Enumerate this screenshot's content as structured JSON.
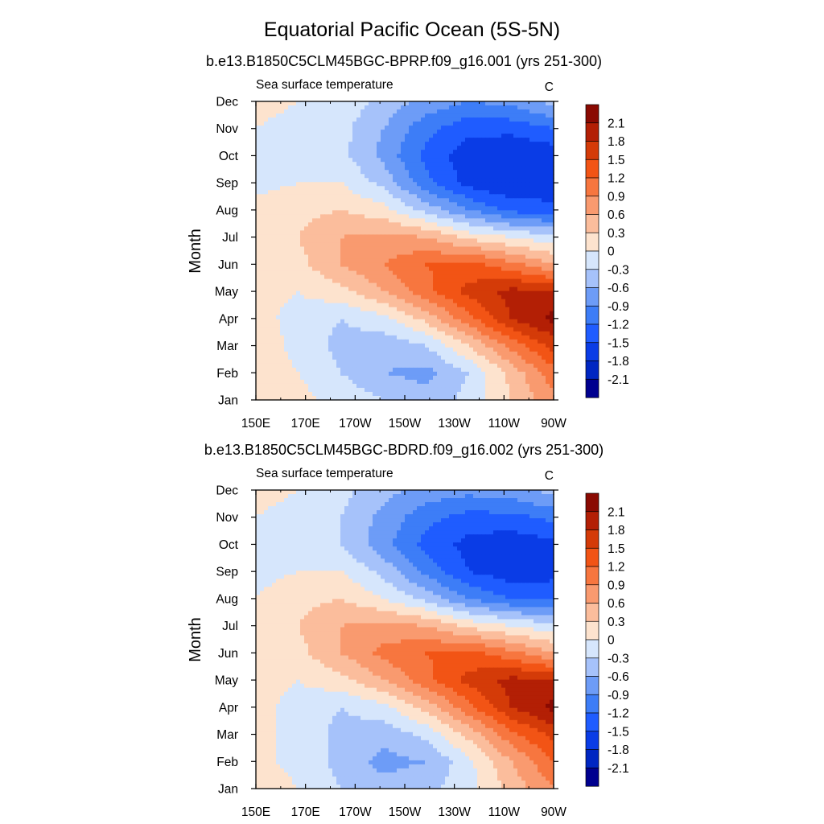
{
  "figure": {
    "title": "Equatorial Pacific Ocean (5S-5N)"
  },
  "colors": {
    "scale": [
      "#00008f",
      "#0026c2",
      "#0a3ce6",
      "#1f5cff",
      "#3d7df7",
      "#6d9cf7",
      "#a6c2fa",
      "#d6e6fc",
      "#fde3ce",
      "#fbbd9c",
      "#f99a6f",
      "#f7763f",
      "#f25415",
      "#d43b08",
      "#b31f05",
      "#8a0a02"
    ],
    "axis": "#000000"
  },
  "chart_data": [
    {
      "type": "heatmap",
      "title": "b.e13.B1850C5CLM45BGC-BPRP.f09_g16.001 (yrs 251-300)",
      "left_label": "Sea surface temperature",
      "right_label": "C",
      "ylabel": "Month",
      "xlabel": "",
      "x_tick_labels": [
        "150E",
        "170E",
        "170W",
        "150W",
        "130W",
        "110W",
        "90W"
      ],
      "y_tick_labels": [
        "Jan",
        "Feb",
        "Mar",
        "Apr",
        "May",
        "Jun",
        "Jul",
        "Aug",
        "Sep",
        "Oct",
        "Nov",
        "Dec"
      ],
      "x_degrees_east": [
        150,
        170,
        190,
        210,
        230,
        250,
        270
      ],
      "xlim": [
        150,
        270
      ],
      "ylim": [
        1,
        12
      ],
      "colorbar": {
        "levels": [
          -2.1,
          -1.8,
          -1.5,
          -1.2,
          -0.9,
          -0.6,
          -0.3,
          0,
          0.3,
          0.6,
          0.9,
          1.2,
          1.5,
          1.8,
          2.1
        ],
        "labels": [
          "2.1",
          "1.8",
          "1.5",
          "1.2",
          "0.9",
          "0.6",
          "0.3",
          "0",
          "-0.3",
          "-0.6",
          "-0.9",
          "-1.2",
          "-1.5",
          "-1.8",
          "-2.1"
        ]
      },
      "values": [
        [
          0.2,
          0.1,
          -0.1,
          -0.3,
          -0.5,
          -0.2,
          0.3,
          0.8
        ],
        [
          0.2,
          0.0,
          -0.3,
          -0.6,
          -0.7,
          -0.3,
          0.4,
          1.1
        ],
        [
          0.2,
          -0.1,
          -0.4,
          -0.5,
          -0.3,
          0.3,
          1.0,
          1.6
        ],
        [
          0.1,
          -0.1,
          -0.3,
          -0.1,
          0.4,
          1.1,
          1.8,
          2.2
        ],
        [
          0.1,
          0.0,
          0.2,
          0.6,
          1.1,
          1.6,
          1.9,
          1.8
        ],
        [
          0.1,
          0.2,
          0.6,
          0.9,
          1.2,
          1.3,
          1.0,
          0.6
        ],
        [
          0.1,
          0.3,
          0.6,
          0.7,
          0.6,
          0.2,
          0.0,
          -0.2
        ],
        [
          0.1,
          0.2,
          0.3,
          0.1,
          -0.4,
          -0.9,
          -1.3,
          -1.4
        ],
        [
          -0.1,
          0.0,
          0.0,
          -0.4,
          -1.1,
          -1.6,
          -1.8,
          -1.7
        ],
        [
          -0.1,
          -0.1,
          -0.2,
          -0.7,
          -1.3,
          -1.7,
          -1.8,
          -1.7
        ],
        [
          0.0,
          -0.1,
          -0.2,
          -0.6,
          -1.1,
          -1.4,
          -1.4,
          -1.2
        ],
        [
          0.1,
          0.0,
          -0.1,
          -0.4,
          -0.7,
          -0.9,
          -0.8,
          -0.5
        ]
      ]
    },
    {
      "type": "heatmap",
      "title": "b.e13.B1850C5CLM45BGC-BDRD.f09_g16.002 (yrs 251-300)",
      "left_label": "Sea surface temperature",
      "right_label": "C",
      "ylabel": "Month",
      "xlabel": "",
      "x_tick_labels": [
        "150E",
        "170E",
        "170W",
        "150W",
        "130W",
        "110W",
        "90W"
      ],
      "y_tick_labels": [
        "Jan",
        "Feb",
        "Mar",
        "Apr",
        "May",
        "Jun",
        "Jul",
        "Aug",
        "Sep",
        "Oct",
        "Nov",
        "Dec"
      ],
      "x_degrees_east": [
        150,
        170,
        190,
        210,
        230,
        250,
        270
      ],
      "xlim": [
        150,
        270
      ],
      "ylim": [
        1,
        12
      ],
      "colorbar": {
        "levels": [
          -2.1,
          -1.8,
          -1.5,
          -1.2,
          -0.9,
          -0.6,
          -0.3,
          0,
          0.3,
          0.6,
          0.9,
          1.2,
          1.5,
          1.8,
          2.1
        ],
        "labels": [
          "2.1",
          "1.8",
          "1.5",
          "1.2",
          "0.9",
          "0.6",
          "0.3",
          "0",
          "-0.3",
          "-0.6",
          "-0.9",
          "-1.2",
          "-1.5",
          "-1.8",
          "-2.1"
        ]
      },
      "values": [
        [
          0.2,
          0.0,
          -0.3,
          -0.5,
          -0.4,
          -0.1,
          0.4,
          0.9
        ],
        [
          0.1,
          -0.1,
          -0.4,
          -0.7,
          -0.6,
          -0.1,
          0.6,
          1.2
        ],
        [
          0.1,
          -0.1,
          -0.4,
          -0.5,
          -0.2,
          0.4,
          1.1,
          1.6
        ],
        [
          0.1,
          -0.1,
          -0.3,
          -0.1,
          0.4,
          1.1,
          1.8,
          2.2
        ],
        [
          0.1,
          0.0,
          0.2,
          0.6,
          1.1,
          1.6,
          1.9,
          1.8
        ],
        [
          0.1,
          0.2,
          0.6,
          1.0,
          1.2,
          1.3,
          1.0,
          0.6
        ],
        [
          0.1,
          0.3,
          0.6,
          0.7,
          0.6,
          0.2,
          0.0,
          -0.2
        ],
        [
          0.0,
          0.2,
          0.3,
          0.0,
          -0.4,
          -0.9,
          -1.2,
          -1.3
        ],
        [
          -0.1,
          0.0,
          0.0,
          -0.4,
          -1.0,
          -1.5,
          -1.7,
          -1.6
        ],
        [
          -0.1,
          -0.1,
          -0.3,
          -0.8,
          -1.3,
          -1.6,
          -1.7,
          -1.6
        ],
        [
          0.0,
          -0.1,
          -0.3,
          -0.7,
          -1.1,
          -1.3,
          -1.3,
          -1.1
        ],
        [
          0.1,
          0.0,
          -0.2,
          -0.5,
          -0.7,
          -0.8,
          -0.7,
          -0.5
        ]
      ]
    }
  ]
}
